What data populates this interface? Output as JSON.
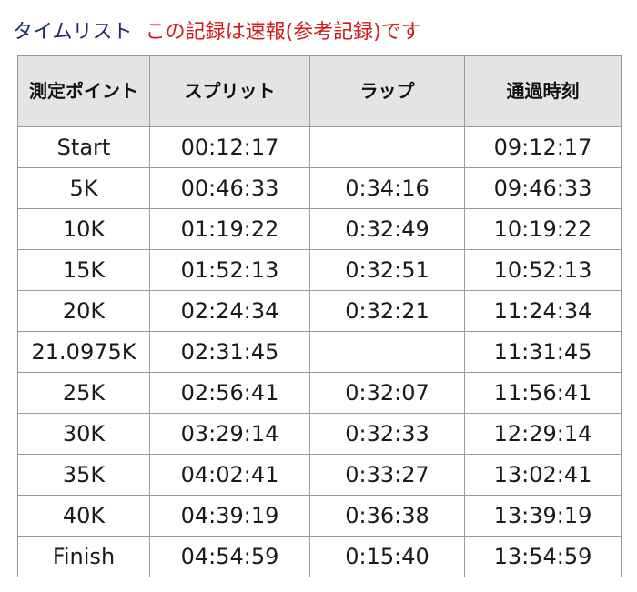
{
  "header": {
    "title": "タイムリスト",
    "notice": "この記録は速報(参考記録)です"
  },
  "table": {
    "columns": [
      "測定ポイント",
      "スプリット",
      "ラップ",
      "通過時刻"
    ],
    "rows": [
      [
        "Start",
        "00:12:17",
        "",
        "09:12:17"
      ],
      [
        "5K",
        "00:46:33",
        "0:34:16",
        "09:46:33"
      ],
      [
        "10K",
        "01:19:22",
        "0:32:49",
        "10:19:22"
      ],
      [
        "15K",
        "01:52:13",
        "0:32:51",
        "10:52:13"
      ],
      [
        "20K",
        "02:24:34",
        "0:32:21",
        "11:24:34"
      ],
      [
        "21.0975K",
        "02:31:45",
        "",
        "11:31:45"
      ],
      [
        "25K",
        "02:56:41",
        "0:32:07",
        "11:56:41"
      ],
      [
        "30K",
        "03:29:14",
        "0:32:33",
        "12:29:14"
      ],
      [
        "35K",
        "04:02:41",
        "0:33:27",
        "13:02:41"
      ],
      [
        "40K",
        "04:39:19",
        "0:36:38",
        "13:39:19"
      ],
      [
        "Finish",
        "04:54:59",
        "0:15:40",
        "13:54:59"
      ]
    ]
  },
  "colors": {
    "title": "#1f2a66",
    "notice": "#d11a1a",
    "header_bg": "#e4e4e4",
    "border": "#9a9a9a"
  }
}
